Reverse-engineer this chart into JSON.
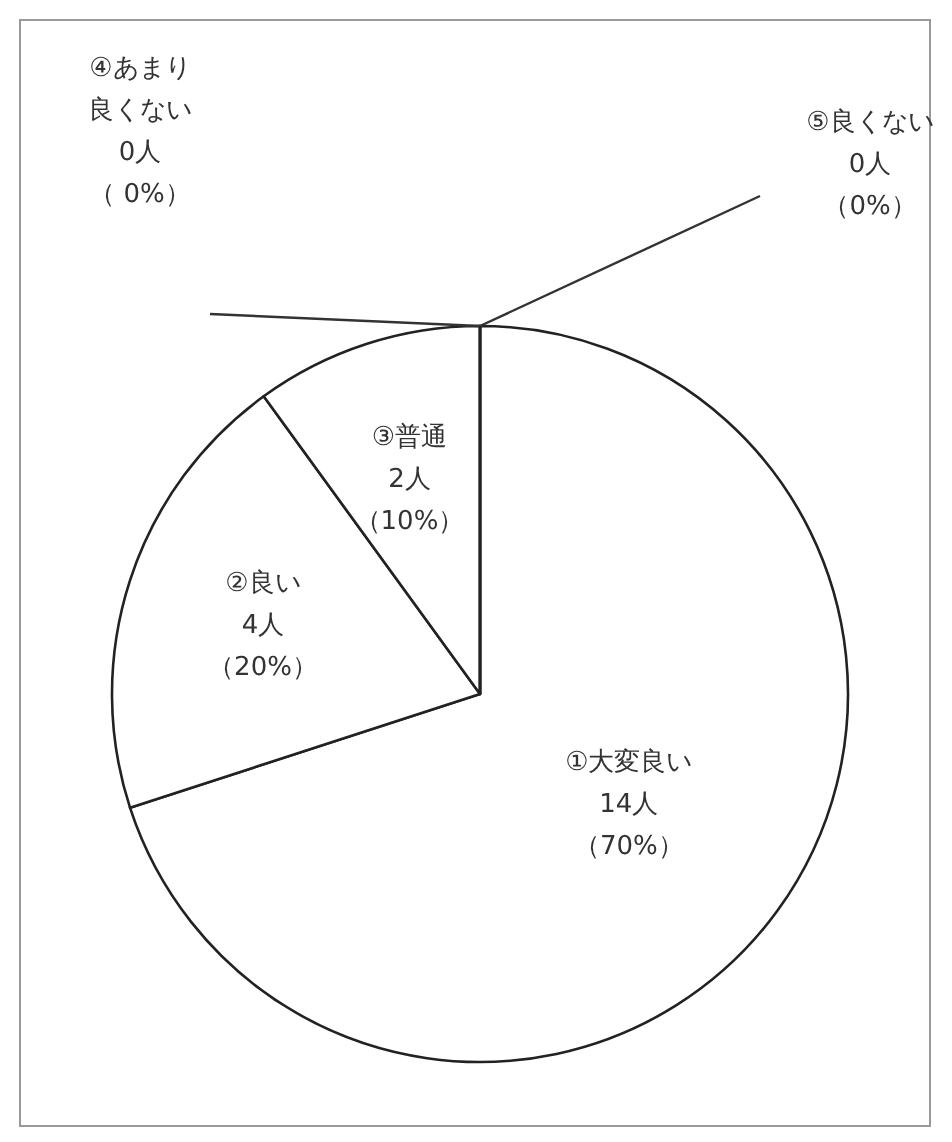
{
  "chart_data": {
    "type": "pie",
    "categories": [
      "①大変良い",
      "②良い",
      "③普通",
      "④あまり良くない",
      "⑤良くない"
    ],
    "values": [
      14,
      4,
      2,
      0,
      0
    ],
    "colors": [
      "#ffffff",
      "#ffffff",
      "#ffffff",
      "#ffffff",
      "#ffffff"
    ],
    "value_labels": [
      "14人（70%）",
      "4人（20%）",
      "2人（10%）",
      "0人（ 0%）",
      "0人（0%）"
    ]
  }
}
